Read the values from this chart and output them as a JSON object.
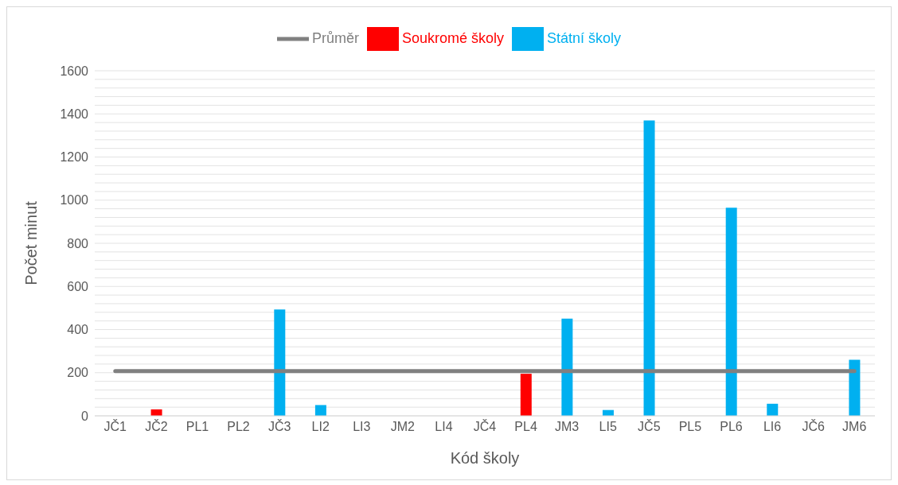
{
  "chart_data": {
    "type": "bar",
    "stacked": true,
    "xlabel": "Kód školy",
    "ylabel": "Počet minut",
    "categories": [
      "JČ1",
      "JČ2",
      "PL1",
      "PL2",
      "JČ3",
      "LI2",
      "LI3",
      "JM2",
      "LI4",
      "JČ4",
      "PL4",
      "JM3",
      "LI5",
      "JČ5",
      "PL5",
      "PL6",
      "LI6",
      "JČ6",
      "JM6"
    ],
    "series": [
      {
        "name": "Státní školy",
        "color": "#00b0f0",
        "values": [
          0,
          null,
          0,
          0,
          493,
          50,
          0,
          0,
          0,
          0,
          null,
          451,
          27,
          1370,
          0,
          965,
          56,
          0,
          260
        ]
      },
      {
        "name": "Soukromé školy",
        "color": "#ff0000",
        "values": [
          null,
          30,
          null,
          null,
          null,
          null,
          null,
          null,
          null,
          null,
          195,
          null,
          null,
          null,
          null,
          null,
          null,
          null,
          null
        ]
      },
      {
        "name": "Průměr",
        "type": "line",
        "color": "#808080",
        "values": [
          207,
          207,
          207,
          207,
          207,
          207,
          207,
          207,
          207,
          207,
          207,
          207,
          207,
          207,
          207,
          207,
          207,
          207,
          207
        ]
      }
    ],
    "ylim": [
      0,
      1600
    ],
    "yticks": [
      0,
      {
        "value": 40,
        "label": null
      },
      {
        "value": 80,
        "label": null
      },
      {
        "value": 120,
        "label": null
      },
      {
        "value": 160,
        "label": null
      },
      200,
      {
        "value": 240,
        "label": null
      },
      {
        "value": 280,
        "label": null
      },
      {
        "value": 320,
        "label": null
      },
      {
        "value": 360,
        "label": null
      },
      400,
      {
        "value": 440,
        "label": null
      },
      {
        "value": 480,
        "label": null
      },
      {
        "value": 520,
        "label": null
      },
      {
        "value": 560,
        "label": null
      },
      600,
      {
        "value": 640,
        "label": null
      },
      {
        "value": 680,
        "label": null
      },
      {
        "value": 720,
        "label": null
      },
      {
        "value": 760,
        "label": null
      },
      800,
      {
        "value": 840,
        "label": null
      },
      {
        "value": 880,
        "label": null
      },
      {
        "value": 920,
        "label": null
      },
      {
        "value": 960,
        "label": null
      },
      1000,
      {
        "value": 1040,
        "label": null
      },
      {
        "value": 1080,
        "label": null
      },
      {
        "value": 1120,
        "label": null
      },
      {
        "value": 1160,
        "label": null
      },
      1200,
      {
        "value": 1240,
        "label": null
      },
      {
        "value": 1280,
        "label": null
      },
      {
        "value": 1320,
        "label": null
      },
      {
        "value": 1360,
        "label": null
      },
      1400,
      {
        "value": 1440,
        "label": null
      },
      {
        "value": 1480,
        "label": null
      },
      {
        "value": 1520,
        "label": null
      },
      {
        "value": 1560,
        "label": null
      },
      1600
    ],
    "grid": "y",
    "legend": "top",
    "marker": "none"
  }
}
